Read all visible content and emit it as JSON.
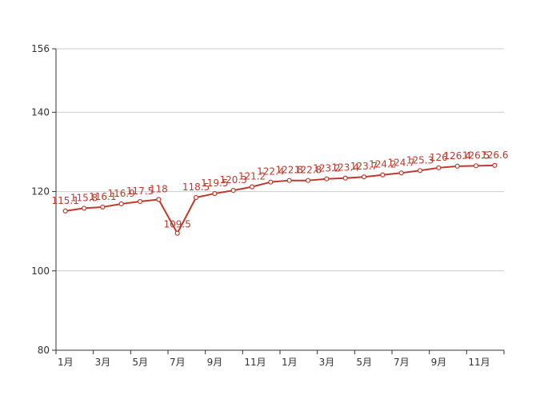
{
  "chart_data": {
    "type": "line",
    "x": [
      "1月",
      "2月",
      "3月",
      "4月",
      "5月",
      "6月",
      "7月",
      "8月",
      "9月",
      "10月",
      "11月",
      "12月",
      "1月",
      "2月",
      "3月",
      "4月",
      "5月",
      "6月",
      "7月",
      "8月",
      "9月",
      "10月",
      "11月",
      "12月"
    ],
    "x_tick_labels": [
      "1月",
      "3月",
      "5月",
      "7月",
      "9月",
      "11月",
      "1月",
      "3月",
      "5月",
      "7月",
      "9月",
      "11月"
    ],
    "series": [
      {
        "values": [
          115.1,
          115.8,
          116.1,
          116.9,
          117.5,
          118,
          109.5,
          118.5,
          119.5,
          120.3,
          121.2,
          122.4,
          122.8,
          122.8,
          123.2,
          123.4,
          123.7,
          124.2,
          124.7,
          125.3,
          126,
          126.4,
          126.5,
          126.6
        ],
        "labels": [
          "115.1",
          "115.8",
          "116.1",
          "116.9",
          "117.5",
          "118",
          "109.5",
          "118.5",
          "119.5",
          "120.3",
          "121.2",
          "122.4",
          "122.8",
          "122.8",
          "123.2",
          "123.4",
          "123.7",
          "124.2",
          "124.7",
          "125.3",
          "126",
          "126.4",
          "126.5",
          "126.6"
        ]
      }
    ],
    "ylim": [
      80,
      156
    ],
    "y_ticks": [
      80,
      100,
      120,
      140,
      156
    ],
    "y_tick_labels": [
      "80",
      "100",
      "120",
      "140",
      "156"
    ],
    "grid": true,
    "colors": {
      "line": "#c0392b",
      "label": "#c0392b",
      "grid": "#cccccc",
      "axis": "#333333",
      "tick_text": "#333333"
    }
  }
}
